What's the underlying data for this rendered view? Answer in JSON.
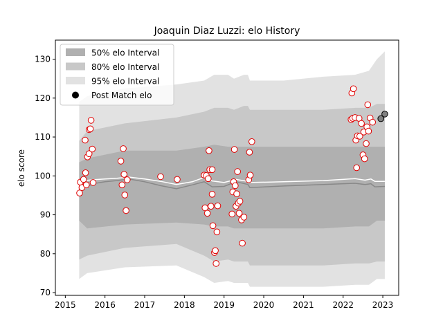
{
  "chart_data": {
    "type": "scatter",
    "title": "Joaquin Diaz Luzzi: elo History",
    "xlabel": "",
    "ylabel": "elo score",
    "xlim": [
      2014.75,
      2023.4
    ],
    "ylim": [
      69.3,
      134.9
    ],
    "x_ticks": [
      2015,
      2016,
      2017,
      2018,
      2019,
      2020,
      2021,
      2022,
      2023
    ],
    "y_ticks": [
      70,
      80,
      90,
      100,
      110,
      120,
      130
    ],
    "grid": false,
    "legend": {
      "placement": "top-left",
      "entries": [
        {
          "label": "50% elo Interval",
          "color": "#b0b0b0"
        },
        {
          "label": "80% elo Interval",
          "color": "#c8c8c8"
        },
        {
          "label": "95% elo Interval",
          "color": "#e2e2e2"
        },
        {
          "label": "Post Match elo",
          "color": "#000000"
        }
      ]
    },
    "bands": [
      {
        "name": "95% elo Interval",
        "color": "#e2e2e2",
        "x": [
          2015.35,
          2015.55,
          2016.5,
          2017.8,
          2018.5,
          2018.75,
          2019.1,
          2019.25,
          2019.5,
          2019.6,
          2019.65,
          2020.5,
          2021.5,
          2022.3,
          2022.65,
          2022.85,
          2023.05
        ],
        "upper": [
          119,
          120.5,
          122.5,
          123.5,
          124.5,
          126,
          126,
          125,
          126,
          126,
          124.5,
          124.5,
          125.5,
          126,
          127,
          130,
          132
        ],
        "lower": [
          73.5,
          75,
          76.5,
          77,
          74,
          72.5,
          73,
          72.5,
          72.5,
          72.5,
          71.5,
          71.5,
          71.5,
          72,
          72,
          73.5,
          73.5
        ]
      },
      {
        "name": "80% elo Interval",
        "color": "#c8c8c8",
        "x": [
          2015.35,
          2015.55,
          2016.5,
          2017.8,
          2018.5,
          2018.75,
          2019.1,
          2019.25,
          2019.5,
          2019.6,
          2019.65,
          2020.5,
          2021.5,
          2022.3,
          2022.65,
          2022.85,
          2023.05
        ],
        "upper": [
          109,
          111.5,
          113.5,
          115,
          116.5,
          117.5,
          117.5,
          117,
          118,
          118,
          117,
          117,
          117,
          117.5,
          117.5,
          118.5,
          118.5
        ],
        "lower": [
          78.5,
          79.5,
          81.5,
          82.5,
          79.5,
          78,
          78.5,
          78,
          78,
          78,
          77,
          77,
          77,
          77.5,
          77.5,
          78,
          78
        ]
      },
      {
        "name": "50% elo Interval",
        "color": "#b0b0b0",
        "x": [
          2015.35,
          2015.55,
          2016.5,
          2017.8,
          2018.5,
          2018.75,
          2019.1,
          2019.25,
          2019.5,
          2019.6,
          2019.65,
          2020.5,
          2021.5,
          2022.3,
          2022.65,
          2022.85,
          2023.05
        ],
        "upper": [
          103.5,
          104.5,
          106.5,
          106.5,
          107.5,
          108,
          107.5,
          107.5,
          107.5,
          107.5,
          107.5,
          107.5,
          107.5,
          107.5,
          107.5,
          107.5,
          107.5
        ],
        "lower": [
          88.5,
          86.5,
          87.5,
          88,
          87.5,
          87,
          87,
          86.5,
          86.5,
          86.5,
          86.5,
          86.5,
          86.5,
          87,
          87,
          88.5,
          88.5
        ]
      }
    ],
    "lines": [
      {
        "color": "#888888",
        "width": 1.5,
        "x": [
          2015.35,
          2015.5,
          2015.7,
          2016.0,
          2016.3,
          2016.6,
          2017.0,
          2017.4,
          2017.8,
          2018.2,
          2018.5,
          2018.7,
          2019.0,
          2019.3,
          2019.6,
          2019.65,
          2020.5,
          2021.5,
          2022.3,
          2022.55,
          2022.7,
          2022.8,
          2023.05
        ],
        "y": [
          96.5,
          97,
          98,
          98.5,
          98.8,
          99.2,
          98.5,
          97.5,
          96.7,
          97.7,
          98.5,
          97.2,
          97.3,
          98.5,
          97.8,
          97,
          97.4,
          97.8,
          98.1,
          97.8,
          98,
          97.2,
          97.3
        ]
      },
      {
        "color": "#ffffff",
        "width": 1.5,
        "x": [
          2015.35,
          2015.5,
          2015.7,
          2016.0,
          2016.3,
          2016.6,
          2017.0,
          2017.4,
          2017.8,
          2018.2,
          2018.5,
          2018.7,
          2019.0,
          2019.3,
          2019.6,
          2019.65,
          2020.5,
          2021.5,
          2022.3,
          2022.55,
          2022.7,
          2022.8,
          2023.05
        ],
        "y": [
          98.4,
          98.8,
          99,
          99.2,
          99.4,
          99.7,
          99.2,
          98.6,
          97.8,
          98.5,
          99.6,
          98.7,
          98.3,
          99.1,
          98.6,
          98.3,
          98.5,
          98.8,
          99.3,
          98.9,
          99.2,
          98.6,
          98.6
        ]
      }
    ],
    "points": [
      {
        "x": 2015.36,
        "y": 95.6
      },
      {
        "x": 2015.38,
        "y": 98.4
      },
      {
        "x": 2015.42,
        "y": 97.0
      },
      {
        "x": 2015.46,
        "y": 99.1
      },
      {
        "x": 2015.5,
        "y": 109.2
      },
      {
        "x": 2015.51,
        "y": 100.8
      },
      {
        "x": 2015.53,
        "y": 97.7
      },
      {
        "x": 2015.56,
        "y": 104.9
      },
      {
        "x": 2015.6,
        "y": 111.9
      },
      {
        "x": 2015.6,
        "y": 105.7
      },
      {
        "x": 2015.63,
        "y": 112.1
      },
      {
        "x": 2015.65,
        "y": 114.3
      },
      {
        "x": 2015.68,
        "y": 106.9
      },
      {
        "x": 2015.7,
        "y": 98.3
      },
      {
        "x": 2016.4,
        "y": 103.8
      },
      {
        "x": 2016.43,
        "y": 97.7
      },
      {
        "x": 2016.46,
        "y": 107.0
      },
      {
        "x": 2016.48,
        "y": 100.4
      },
      {
        "x": 2016.5,
        "y": 95.1
      },
      {
        "x": 2016.53,
        "y": 91.1
      },
      {
        "x": 2016.56,
        "y": 99.0
      },
      {
        "x": 2017.4,
        "y": 99.8
      },
      {
        "x": 2017.82,
        "y": 99.1
      },
      {
        "x": 2018.5,
        "y": 100.2
      },
      {
        "x": 2018.52,
        "y": 91.8
      },
      {
        "x": 2018.55,
        "y": 100.1
      },
      {
        "x": 2018.58,
        "y": 90.4
      },
      {
        "x": 2018.6,
        "y": 99.3
      },
      {
        "x": 2018.62,
        "y": 106.5
      },
      {
        "x": 2018.64,
        "y": 101.6
      },
      {
        "x": 2018.67,
        "y": 92.2
      },
      {
        "x": 2018.7,
        "y": 101.6
      },
      {
        "x": 2018.7,
        "y": 95.3
      },
      {
        "x": 2018.72,
        "y": 87.2
      },
      {
        "x": 2018.76,
        "y": 80.3
      },
      {
        "x": 2018.78,
        "y": 80.8
      },
      {
        "x": 2018.8,
        "y": 77.5
      },
      {
        "x": 2018.82,
        "y": 85.6
      },
      {
        "x": 2018.84,
        "y": 92.3
      },
      {
        "x": 2019.2,
        "y": 90.2
      },
      {
        "x": 2019.22,
        "y": 95.9
      },
      {
        "x": 2019.24,
        "y": 98.5
      },
      {
        "x": 2019.26,
        "y": 106.8
      },
      {
        "x": 2019.28,
        "y": 97.5
      },
      {
        "x": 2019.3,
        "y": 92.2
      },
      {
        "x": 2019.32,
        "y": 95.4
      },
      {
        "x": 2019.34,
        "y": 101.1
      },
      {
        "x": 2019.36,
        "y": 93.0
      },
      {
        "x": 2019.38,
        "y": 90.4
      },
      {
        "x": 2019.4,
        "y": 93.5
      },
      {
        "x": 2019.44,
        "y": 88.7
      },
      {
        "x": 2019.46,
        "y": 82.7
      },
      {
        "x": 2019.5,
        "y": 89.4
      },
      {
        "x": 2019.62,
        "y": 99.0
      },
      {
        "x": 2019.64,
        "y": 106.1
      },
      {
        "x": 2019.66,
        "y": 100.2
      },
      {
        "x": 2019.7,
        "y": 108.8
      },
      {
        "x": 2022.2,
        "y": 114.5
      },
      {
        "x": 2022.22,
        "y": 121.3
      },
      {
        "x": 2022.24,
        "y": 114.8
      },
      {
        "x": 2022.26,
        "y": 122.4
      },
      {
        "x": 2022.3,
        "y": 115.0
      },
      {
        "x": 2022.32,
        "y": 109.2
      },
      {
        "x": 2022.34,
        "y": 102.1
      },
      {
        "x": 2022.36,
        "y": 110.3
      },
      {
        "x": 2022.4,
        "y": 114.8
      },
      {
        "x": 2022.42,
        "y": 110.2
      },
      {
        "x": 2022.46,
        "y": 113.5
      },
      {
        "x": 2022.5,
        "y": 105.4
      },
      {
        "x": 2022.52,
        "y": 111.3
      },
      {
        "x": 2022.54,
        "y": 104.4
      },
      {
        "x": 2022.58,
        "y": 108.3
      },
      {
        "x": 2022.6,
        "y": 112.6
      },
      {
        "x": 2022.62,
        "y": 118.3
      },
      {
        "x": 2022.64,
        "y": 111.5
      },
      {
        "x": 2022.68,
        "y": 114.9
      },
      {
        "x": 2022.74,
        "y": 113.8
      }
    ],
    "recent_points": [
      {
        "x": 2022.95,
        "y": 114.7
      },
      {
        "x": 2023.05,
        "y": 115.9
      }
    ]
  }
}
